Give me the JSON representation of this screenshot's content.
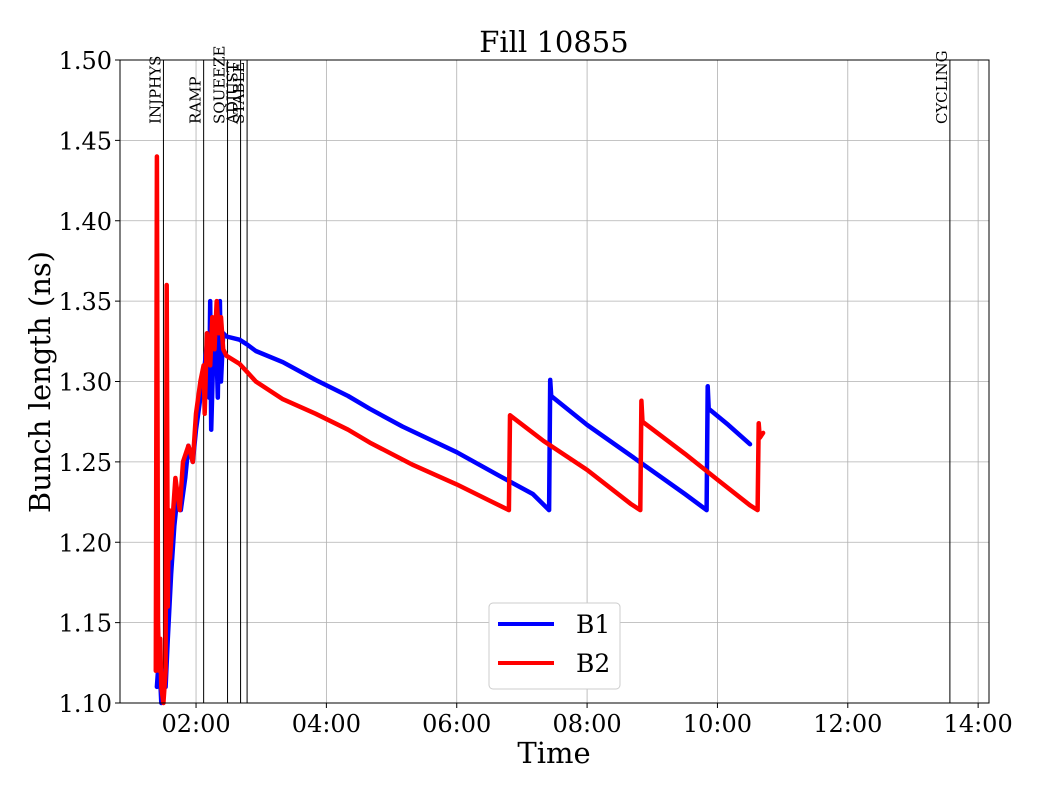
{
  "chart_data": {
    "type": "line",
    "title": "Fill 10855",
    "xlabel": "Time",
    "ylabel": "Bunch length (ns)",
    "xlim": [
      "00:50",
      "14:10"
    ],
    "ylim": [
      1.1,
      1.5
    ],
    "xticks": [
      "02:00",
      "04:00",
      "06:00",
      "08:00",
      "10:00",
      "12:00",
      "14:00"
    ],
    "yticks": [
      "1.10",
      "1.15",
      "1.20",
      "1.25",
      "1.30",
      "1.35",
      "1.40",
      "1.45",
      "1.50"
    ],
    "grid": true,
    "legend_position": "bottom-center",
    "phases": [
      {
        "label": "INJPHYS",
        "time": "01:30"
      },
      {
        "label": "RAMP",
        "time": "02:07"
      },
      {
        "label": "SQUEEZE",
        "time": "02:29"
      },
      {
        "label": "ADJUST",
        "time": "02:41"
      },
      {
        "label": "STABLE",
        "time": "02:47"
      },
      {
        "label": "CYCLING",
        "time": "13:34"
      }
    ],
    "series": [
      {
        "name": "B1",
        "color": "#0000ff",
        "points": [
          [
            "01:24",
            1.11
          ],
          [
            "01:26",
            1.13
          ],
          [
            "01:28",
            1.1
          ],
          [
            "01:30",
            1.12
          ],
          [
            "01:32",
            1.11
          ],
          [
            "01:34",
            1.14
          ],
          [
            "01:37",
            1.18
          ],
          [
            "01:40",
            1.21
          ],
          [
            "01:43",
            1.23
          ],
          [
            "01:46",
            1.22
          ],
          [
            "01:50",
            1.24
          ],
          [
            "01:53",
            1.26
          ],
          [
            "01:57",
            1.25
          ],
          [
            "02:00",
            1.27
          ],
          [
            "02:04",
            1.29
          ],
          [
            "02:08",
            1.31
          ],
          [
            "02:11",
            1.33
          ],
          [
            "02:12",
            1.29
          ],
          [
            "02:13",
            1.35
          ],
          [
            "02:14",
            1.27
          ],
          [
            "02:16",
            1.32
          ],
          [
            "02:18",
            1.34
          ],
          [
            "02:20",
            1.29
          ],
          [
            "02:21",
            1.33
          ],
          [
            "02:22",
            1.35
          ],
          [
            "02:23",
            1.3
          ],
          [
            "02:25",
            1.33
          ],
          [
            "02:28",
            1.328
          ],
          [
            "02:40",
            1.326
          ],
          [
            "02:47",
            1.323
          ],
          [
            "02:55",
            1.319
          ],
          [
            "03:20",
            1.312
          ],
          [
            "03:50",
            1.301
          ],
          [
            "04:20",
            1.291
          ],
          [
            "04:40",
            1.283
          ],
          [
            "05:10",
            1.272
          ],
          [
            "06:00",
            1.256
          ],
          [
            "06:40",
            1.241
          ],
          [
            "07:10",
            1.23
          ],
          [
            "07:25",
            1.22
          ],
          [
            "07:26",
            1.301
          ],
          [
            "07:27",
            1.291
          ],
          [
            "08:00",
            1.273
          ],
          [
            "08:40",
            1.254
          ],
          [
            "09:30",
            1.23
          ],
          [
            "09:50",
            1.22
          ],
          [
            "09:51",
            1.297
          ],
          [
            "09:52",
            1.283
          ],
          [
            "10:10",
            1.273
          ],
          [
            "10:30",
            1.261
          ]
        ]
      },
      {
        "name": "B2",
        "color": "#ff0000",
        "points": [
          [
            "01:23",
            1.12
          ],
          [
            "01:24",
            1.44
          ],
          [
            "01:25",
            1.15
          ],
          [
            "01:26",
            1.12
          ],
          [
            "01:27",
            1.14
          ],
          [
            "01:28",
            1.11
          ],
          [
            "01:30",
            1.1
          ],
          [
            "01:32",
            1.12
          ],
          [
            "01:33",
            1.36
          ],
          [
            "01:34",
            1.16
          ],
          [
            "01:35",
            1.22
          ],
          [
            "01:36",
            1.19
          ],
          [
            "01:38",
            1.21
          ],
          [
            "01:41",
            1.24
          ],
          [
            "01:45",
            1.22
          ],
          [
            "01:48",
            1.25
          ],
          [
            "01:53",
            1.26
          ],
          [
            "01:57",
            1.25
          ],
          [
            "02:00",
            1.28
          ],
          [
            "02:04",
            1.3
          ],
          [
            "02:07",
            1.31
          ],
          [
            "02:08",
            1.28
          ],
          [
            "02:10",
            1.33
          ],
          [
            "02:13",
            1.31
          ],
          [
            "02:15",
            1.34
          ],
          [
            "02:17",
            1.32
          ],
          [
            "02:19",
            1.35
          ],
          [
            "02:21",
            1.33
          ],
          [
            "02:23",
            1.34
          ],
          [
            "02:25",
            1.32
          ],
          [
            "02:28",
            1.316
          ],
          [
            "02:40",
            1.311
          ],
          [
            "02:47",
            1.306
          ],
          [
            "02:55",
            1.3
          ],
          [
            "03:20",
            1.289
          ],
          [
            "03:50",
            1.28
          ],
          [
            "04:20",
            1.27
          ],
          [
            "04:40",
            1.262
          ],
          [
            "05:20",
            1.248
          ],
          [
            "06:00",
            1.236
          ],
          [
            "06:30",
            1.226
          ],
          [
            "06:48",
            1.22
          ],
          [
            "06:49",
            1.279
          ],
          [
            "07:20",
            1.263
          ],
          [
            "08:00",
            1.245
          ],
          [
            "08:40",
            1.224
          ],
          [
            "08:49",
            1.22
          ],
          [
            "08:50",
            1.288
          ],
          [
            "08:51",
            1.275
          ],
          [
            "09:30",
            1.255
          ],
          [
            "10:00",
            1.239
          ],
          [
            "10:30",
            1.223
          ],
          [
            "10:37",
            1.22
          ],
          [
            "10:38",
            1.274
          ],
          [
            "10:39",
            1.265
          ],
          [
            "10:42",
            1.268
          ]
        ]
      }
    ]
  }
}
